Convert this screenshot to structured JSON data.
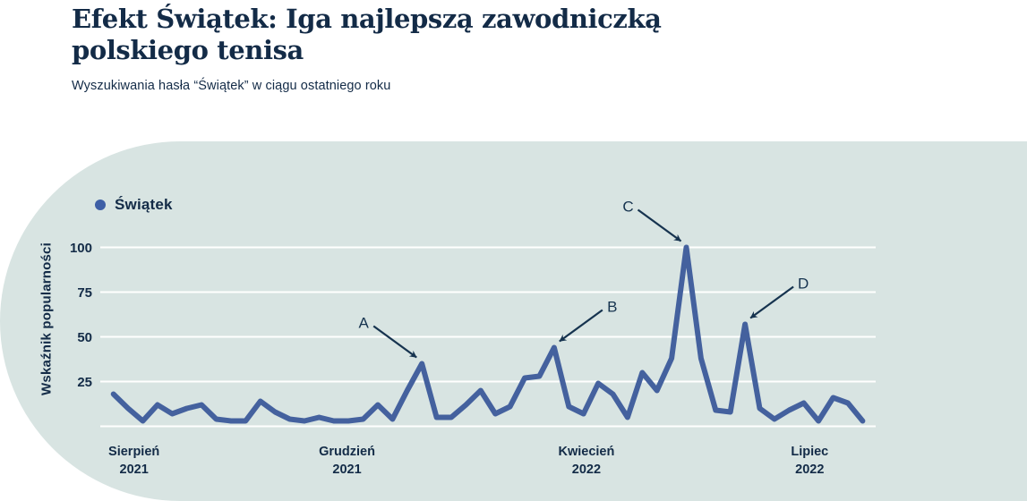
{
  "header": {
    "title_line1": "Efekt Świątek: Iga najlepszą zawodniczką",
    "title_line2": "polskiego tenisa",
    "subtitle": "Wyszukiwania hasła “Świątek” w ciągu ostatniego roku"
  },
  "legend": {
    "label": "Świątek"
  },
  "colors": {
    "ink": "#132B47",
    "annotation": "#16334F",
    "line": "#44619E",
    "legend_dot": "#3E5FA6",
    "blob_background": "#D8E4E2",
    "grid": "#FFFFFF",
    "page_background": "#FFFFFF"
  },
  "chart_data": {
    "type": "line",
    "title": "Wyszukiwania hasła “Świątek” w ciągu ostatniego roku",
    "xlabel": "",
    "ylabel": "Wskaźnik popularności",
    "x_unit": "tydzień",
    "x_range": "Sierpień 2021 – Lipiec 2022",
    "n_points": 52,
    "ylim": [
      0,
      105
    ],
    "yticks": [
      0,
      25,
      50,
      75,
      100
    ],
    "ytick_labels": [
      "25",
      "50",
      "75",
      "100"
    ],
    "grid": "horizontal white lines",
    "legend_position": "top-left",
    "series": [
      {
        "name": "Świątek",
        "values": [
          18,
          10,
          3,
          12,
          7,
          10,
          12,
          4,
          3,
          3,
          14,
          8,
          4,
          3,
          5,
          3,
          3,
          4,
          12,
          4,
          20,
          35,
          5,
          5,
          12,
          20,
          7,
          11,
          27,
          28,
          44,
          11,
          7,
          24,
          18,
          5,
          30,
          20,
          38,
          100,
          38,
          9,
          8,
          57,
          10,
          4,
          9,
          13,
          3,
          16,
          13,
          3
        ]
      }
    ],
    "xtick_labels": [
      {
        "line1": "Sierpień",
        "line2": "2021",
        "week_index": 1.4
      },
      {
        "line1": "Grudzień",
        "line2": "2021",
        "week_index": 15.9
      },
      {
        "line1": "Kwiecień",
        "line2": "2022",
        "week_index": 32.2
      },
      {
        "line1": "Lipiec",
        "line2": "2022",
        "week_index": 47.4
      }
    ],
    "annotations": [
      {
        "label": "A",
        "point_index": 21,
        "value": 35,
        "side": "left"
      },
      {
        "label": "B",
        "point_index": 30,
        "value": 44,
        "side": "right"
      },
      {
        "label": "C",
        "point_index": 39,
        "value": 100,
        "side": "left"
      },
      {
        "label": "D",
        "point_index": 43,
        "value": 57,
        "side": "right"
      }
    ]
  }
}
